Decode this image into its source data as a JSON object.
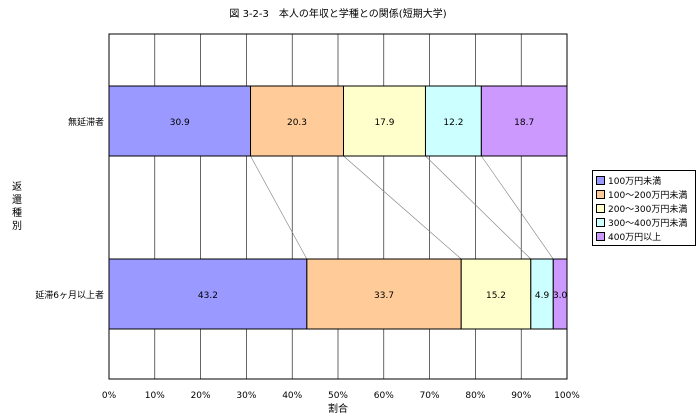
{
  "chart_data": {
    "type": "bar",
    "stacked": true,
    "orientation": "horizontal",
    "percent": true,
    "title": "図 3-2-3　本人の年収と学種との関係(短期大学)",
    "xlabel": "割合",
    "ylabel": "返還種別",
    "xlim": [
      0,
      100
    ],
    "x_ticks": [
      "0%",
      "10%",
      "20%",
      "30%",
      "40%",
      "50%",
      "60%",
      "70%",
      "80%",
      "90%",
      "100%"
    ],
    "grid": true,
    "legend_position": "right",
    "categories": [
      "無延滞者",
      "延滞6ヶ月以上者"
    ],
    "series": [
      {
        "name": "100万円未満",
        "color": "#9999ff",
        "values": [
          30.9,
          43.2
        ]
      },
      {
        "name": "100～200万円未満",
        "color": "#ffcc99",
        "values": [
          20.3,
          33.7
        ]
      },
      {
        "name": "200～300万円未満",
        "color": "#ffffcc",
        "values": [
          17.9,
          15.2
        ]
      },
      {
        "name": "300～400万円未満",
        "color": "#ccffff",
        "values": [
          12.2,
          4.9
        ]
      },
      {
        "name": "400万円以上",
        "color": "#cc99ff",
        "values": [
          18.7,
          3.0
        ]
      }
    ]
  }
}
